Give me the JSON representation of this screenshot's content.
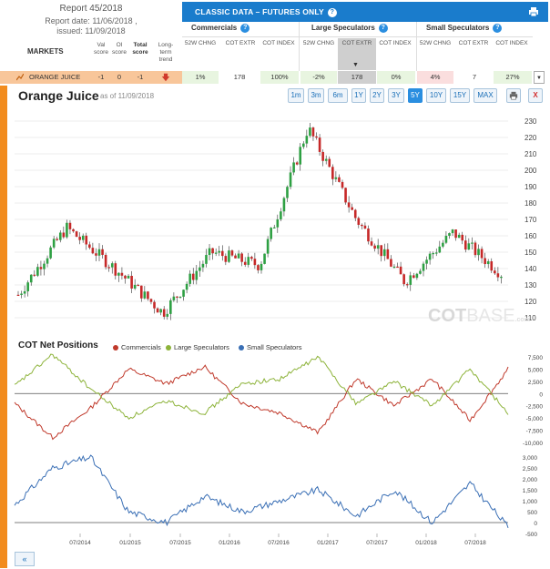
{
  "report": {
    "title": "Report 45/2018",
    "date_line": "Report date: 11/06/2018 ,",
    "issued_line": "issued: 11/09/2018"
  },
  "markets_label": "MARKETS",
  "columns_left": [
    {
      "label": "Val score"
    },
    {
      "label": "OI score"
    },
    {
      "label": "Total score"
    },
    {
      "label": "Long-term trend"
    }
  ],
  "banner": {
    "title": "CLASSIC DATA – FUTURES ONLY",
    "print_icon": "printer-icon"
  },
  "groups": [
    {
      "name": "Commercials",
      "cols": [
        "52W CHNG",
        "COT EXTR",
        "COT INDEX"
      ]
    },
    {
      "name": "Large Speculators",
      "cols": [
        "52W CHNG",
        "COT EXTR",
        "COT INDEX"
      ]
    },
    {
      "name": "Small Speculators",
      "cols": [
        "52W CHNG",
        "COT EXTR",
        "COT INDEX"
      ]
    }
  ],
  "market_row": {
    "name": "ORANGE JUICE",
    "val_score": "-1",
    "oi_score": "0",
    "total_score": "-1",
    "trend": "down-arrow-icon",
    "values": [
      "1%",
      "178",
      "100%",
      "-2%",
      "178",
      "0%",
      "4%",
      "7",
      "27%"
    ]
  },
  "chart_header": {
    "title": "Orange Juice",
    "as_of": "as of 11/09/2018"
  },
  "timeframes": [
    "1m",
    "3m",
    "6m",
    "1Y",
    "2Y",
    "3Y",
    "5Y",
    "10Y",
    "15Y",
    "MAX"
  ],
  "selected_timeframe": "5Y",
  "cot_title": "COT Net Positions",
  "legend": [
    {
      "name": "Commercials",
      "color": "#c0392b"
    },
    {
      "name": "Large Speculators",
      "color": "#8db33a"
    },
    {
      "name": "Small Speculators",
      "color": "#3a6fb5"
    }
  ],
  "watermark": {
    "main": "COT",
    "rest": "BASE",
    "suffix": ".com"
  },
  "nav": {
    "prev": "«"
  },
  "chart_data": [
    {
      "type": "candlestick",
      "title": "Orange Juice",
      "y_ticks": [
        "230",
        "220",
        "210",
        "200",
        "190",
        "180",
        "170",
        "160",
        "150",
        "140",
        "130",
        "120",
        "110"
      ],
      "ylim": [
        105,
        235
      ],
      "colors": {
        "up": "#2ea043",
        "down": "#c62828"
      },
      "x": [
        "2014-01",
        "2014-07",
        "2015-01",
        "2015-07",
        "2016-01",
        "2016-07",
        "2017-01",
        "2017-07",
        "2018-01",
        "2018-07",
        "2018-11"
      ],
      "close": [
        124,
        165,
        140,
        113,
        150,
        142,
        226,
        170,
        132,
        162,
        137
      ]
    },
    {
      "type": "line",
      "title": "COT Net Positions",
      "y_ticks": [
        "7,500",
        "5,000",
        "2,500",
        "0",
        "-2,500",
        "-5,000",
        "-7,500",
        "-10,000"
      ],
      "ylim": [
        -10000,
        7500
      ],
      "series": [
        {
          "name": "Commercials",
          "values": [
            -2000,
            -9000,
            -3000,
            5000,
            2000,
            5500,
            -2000,
            -4000,
            -8000,
            3000,
            -2500,
            3000,
            -5500,
            5000
          ]
        },
        {
          "name": "Large Speculators",
          "values": [
            1500,
            8000,
            1000,
            -5000,
            -1500,
            -4000,
            2000,
            3000,
            7500,
            -2000,
            2500,
            -2500,
            5000,
            -4000
          ]
        }
      ]
    },
    {
      "type": "line",
      "y_ticks": [
        "3,000",
        "2,500",
        "2,000",
        "1,500",
        "1,000",
        "500",
        "0",
        "-500"
      ],
      "ylim": [
        -500,
        3000
      ],
      "x_ticks": [
        "07/2014",
        "01/2015",
        "07/2015",
        "01/2016",
        "07/2016",
        "01/2017",
        "07/2017",
        "01/2018",
        "07/2018"
      ],
      "series": [
        {
          "name": "Small Speculators",
          "values": [
            800,
            2500,
            3000,
            500,
            0,
            1200,
            500,
            1000,
            1500,
            300,
            1500,
            0,
            1800,
            -200
          ]
        }
      ]
    }
  ]
}
